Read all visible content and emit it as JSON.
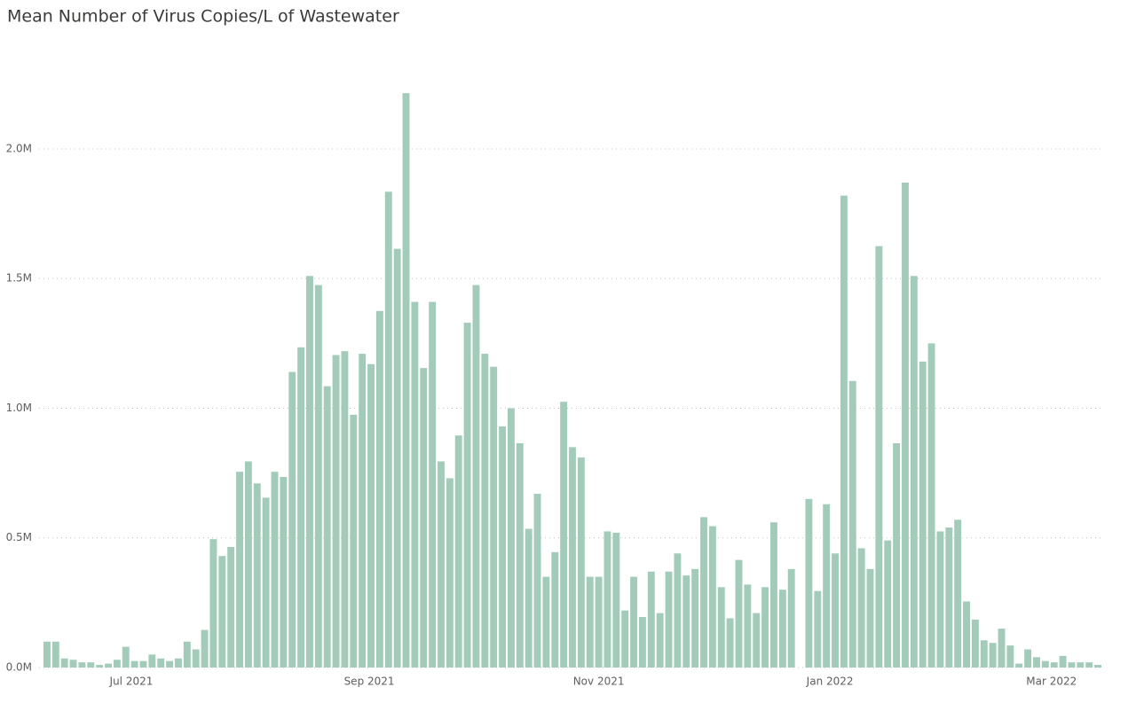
{
  "chart_data": {
    "type": "bar",
    "title": "Mean Number of Virus Copies/L of Wastewater",
    "categories": [
      null,
      null,
      null,
      null,
      null,
      null,
      null,
      null,
      null,
      null,
      null,
      null,
      null,
      null,
      null,
      null,
      null,
      null,
      null,
      null,
      null,
      null,
      null,
      null,
      null,
      null,
      null,
      null,
      null,
      null,
      null,
      null,
      null,
      null,
      null,
      null,
      null,
      null,
      null,
      null,
      null,
      null,
      null,
      null,
      null,
      null,
      null,
      null,
      null,
      null,
      null,
      null,
      null,
      null,
      null,
      null,
      null,
      null,
      null,
      null,
      null,
      null,
      null,
      null,
      null,
      null,
      null,
      null,
      null,
      null,
      null,
      null,
      null,
      null,
      null,
      null,
      null,
      null,
      null,
      null,
      null,
      null,
      null,
      null,
      null,
      null,
      null,
      null,
      null,
      null,
      null,
      null,
      null,
      null,
      null,
      null,
      null,
      null,
      null,
      null,
      null,
      null,
      null,
      null,
      null,
      null,
      null,
      null,
      null,
      null,
      null,
      null,
      null,
      null,
      null,
      null,
      null,
      null,
      null,
      null,
      null
    ],
    "values": [
      100000,
      100000,
      35000,
      30000,
      20000,
      20000,
      10000,
      15000,
      30000,
      80000,
      25000,
      25000,
      50000,
      35000,
      25000,
      35000,
      100000,
      70000,
      145000,
      495000,
      430000,
      465000,
      755000,
      795000,
      710000,
      655000,
      755000,
      735000,
      1140000,
      1235000,
      1510000,
      1475000,
      1085000,
      1205000,
      1220000,
      975000,
      1210000,
      1170000,
      1375000,
      1835000,
      1615000,
      2215000,
      1410000,
      1155000,
      1410000,
      795000,
      730000,
      895000,
      1330000,
      1475000,
      1210000,
      1160000,
      930000,
      1000000,
      865000,
      535000,
      670000,
      350000,
      445000,
      1025000,
      850000,
      810000,
      350000,
      350000,
      525000,
      520000,
      220000,
      350000,
      195000,
      370000,
      210000,
      370000,
      440000,
      355000,
      380000,
      580000,
      545000,
      310000,
      190000,
      415000,
      320000,
      210000,
      310000,
      560000,
      300000,
      380000,
      null,
      650000,
      295000,
      630000,
      440000,
      1820000,
      1105000,
      460000,
      380000,
      1625000,
      490000,
      865000,
      1870000,
      1510000,
      1180000,
      1250000,
      525000,
      540000,
      570000,
      255000,
      185000,
      105000,
      95000,
      150000,
      85000,
      15000,
      70000,
      40000,
      25000,
      20000,
      45000,
      20000,
      20000,
      20000,
      10000
    ],
    "color": "#a3cbb9",
    "ylim": [
      0,
      2270000
    ],
    "yticks": [
      {
        "value": 0,
        "label": "0.0M"
      },
      {
        "value": 500000,
        "label": "0.5M"
      },
      {
        "value": 1000000,
        "label": "1.0M"
      },
      {
        "value": 1500000,
        "label": "1.5M"
      },
      {
        "value": 2000000,
        "label": "2.0M"
      }
    ],
    "xticks": [
      {
        "value": 9.63,
        "label": "Jul 2021"
      },
      {
        "value": 36.8,
        "label": "Sep 2021"
      },
      {
        "value": 63.0,
        "label": "Nov 2021"
      },
      {
        "value": 89.4,
        "label": "Jan 2022"
      },
      {
        "value": 114.7,
        "label": "Mar 2022"
      }
    ],
    "grid": true
  }
}
